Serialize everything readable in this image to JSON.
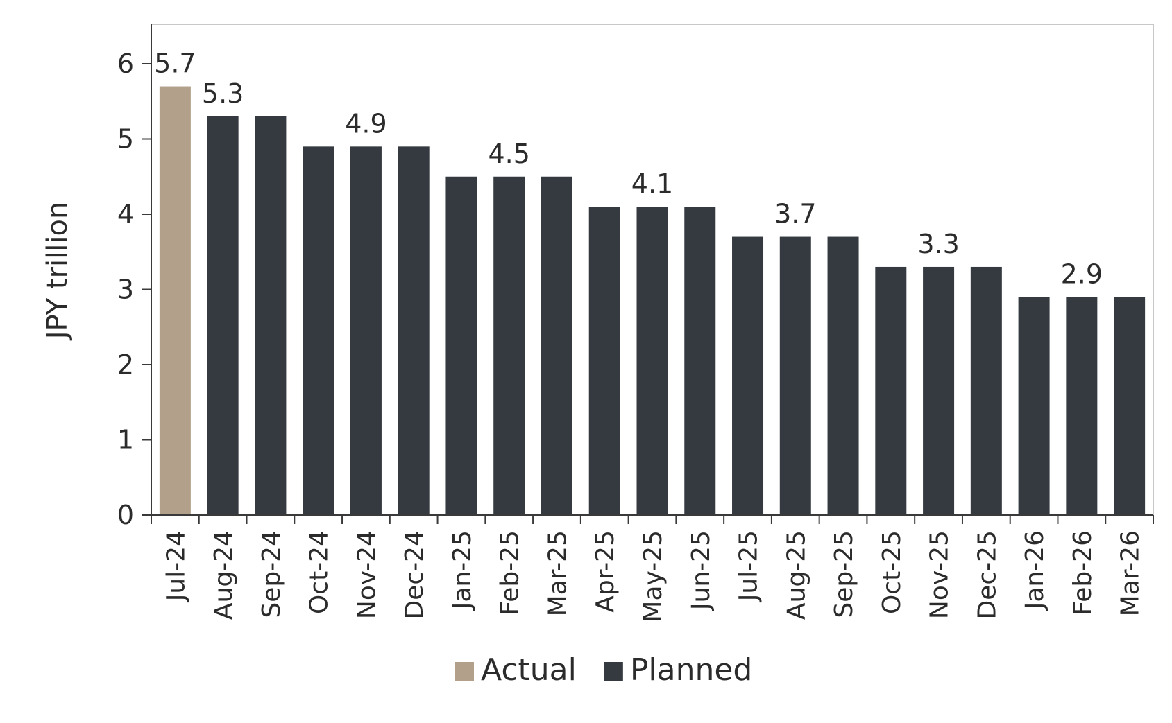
{
  "chart_data": {
    "type": "bar",
    "ylabel": "JPY trillion",
    "xlabel": "",
    "ylim": [
      0,
      6
    ],
    "yticks": [
      0,
      1,
      2,
      3,
      4,
      5,
      6
    ],
    "categories": [
      "Jul-24",
      "Aug-24",
      "Sep-24",
      "Oct-24",
      "Nov-24",
      "Dec-24",
      "Jan-25",
      "Feb-25",
      "Mar-25",
      "Apr-25",
      "May-25",
      "Jun-25",
      "Jul-25",
      "Aug-25",
      "Sep-25",
      "Oct-25",
      "Nov-25",
      "Dec-25",
      "Jan-26",
      "Feb-26",
      "Mar-26"
    ],
    "series": [
      {
        "name": "Actual",
        "color": "#b3a08b",
        "values": [
          5.7,
          null,
          null,
          null,
          null,
          null,
          null,
          null,
          null,
          null,
          null,
          null,
          null,
          null,
          null,
          null,
          null,
          null,
          null,
          null,
          null
        ]
      },
      {
        "name": "Planned",
        "color": "#343a40",
        "values": [
          null,
          5.3,
          5.3,
          4.9,
          4.9,
          4.9,
          4.5,
          4.5,
          4.5,
          4.1,
          4.1,
          4.1,
          3.7,
          3.7,
          3.7,
          3.3,
          3.3,
          3.3,
          2.9,
          2.9,
          2.9
        ]
      }
    ],
    "data_labels": [
      {
        "category": "Jul-24",
        "text": "5.7"
      },
      {
        "category": "Aug-24",
        "text": "5.3"
      },
      {
        "category": "Nov-24",
        "text": "4.9"
      },
      {
        "category": "Feb-25",
        "text": "4.5"
      },
      {
        "category": "May-25",
        "text": "4.1"
      },
      {
        "category": "Aug-25",
        "text": "3.7"
      },
      {
        "category": "Nov-25",
        "text": "3.3"
      },
      {
        "category": "Feb-26",
        "text": "2.9"
      }
    ],
    "legend": {
      "position": "bottom-center",
      "entries": [
        "Actual",
        "Planned"
      ]
    },
    "grid": false
  }
}
